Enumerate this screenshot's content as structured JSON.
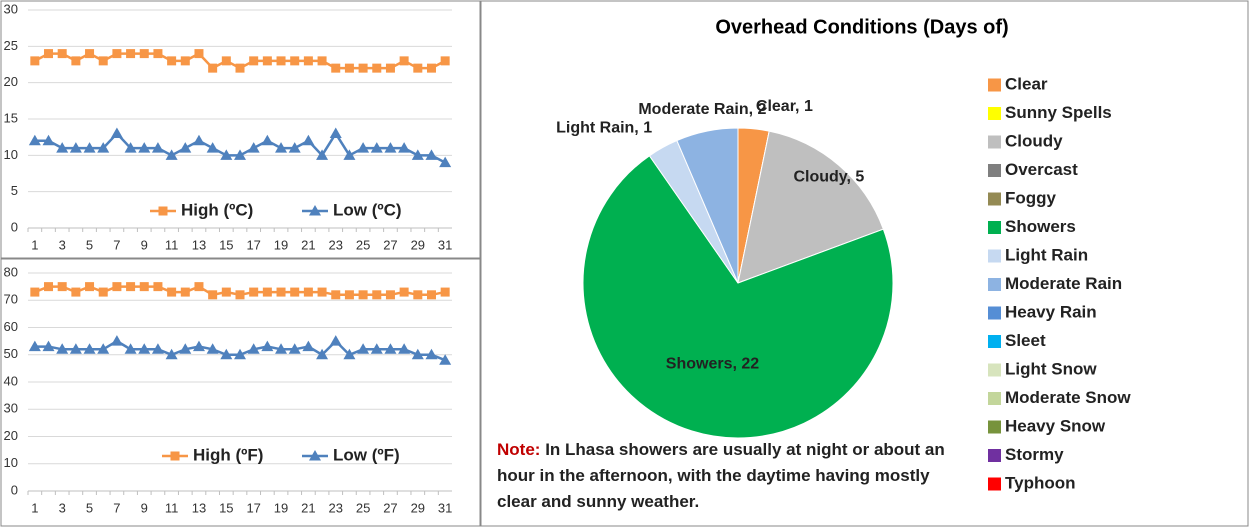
{
  "chart_data": [
    {
      "type": "line",
      "categories": [
        "1",
        null,
        "3",
        null,
        "5",
        null,
        "7",
        null,
        "9",
        null,
        "11",
        null,
        "13",
        null,
        "15",
        null,
        "17",
        null,
        "19",
        null,
        "21",
        null,
        "23",
        null,
        "25",
        null,
        "27",
        null,
        "29",
        null,
        "31"
      ],
      "ylim": [
        0,
        30
      ],
      "yticks": [
        0,
        5,
        10,
        15,
        20,
        25,
        30
      ],
      "grid": true,
      "series": [
        {
          "name": "High (ºC)",
          "color": "#f79646",
          "marker": "square",
          "values": [
            23,
            24,
            24,
            23,
            24,
            23,
            24,
            24,
            24,
            24,
            23,
            23,
            24,
            22,
            23,
            22,
            23,
            23,
            23,
            23,
            23,
            23,
            22,
            22,
            22,
            22,
            22,
            23,
            22,
            22,
            23
          ]
        },
        {
          "name": "Low (ºC)",
          "color": "#4f81bd",
          "marker": "triangle",
          "values": [
            12,
            12,
            11,
            11,
            11,
            11,
            13,
            11,
            11,
            11,
            10,
            11,
            12,
            11,
            10,
            10,
            11,
            12,
            11,
            11,
            12,
            10,
            13,
            10,
            11,
            11,
            11,
            11,
            10,
            10,
            9
          ]
        }
      ]
    },
    {
      "type": "line",
      "categories": [
        "1",
        null,
        "3",
        null,
        "5",
        null,
        "7",
        null,
        "9",
        null,
        "11",
        null,
        "13",
        null,
        "15",
        null,
        "17",
        null,
        "19",
        null,
        "21",
        null,
        "23",
        null,
        "25",
        null,
        "27",
        null,
        "29",
        null,
        "31"
      ],
      "ylim": [
        0,
        80
      ],
      "yticks": [
        0,
        10,
        20,
        30,
        40,
        50,
        60,
        70,
        80
      ],
      "grid": true,
      "series": [
        {
          "name": "High (ºF)",
          "color": "#f79646",
          "marker": "square",
          "values": [
            73,
            75,
            75,
            73,
            75,
            73,
            75,
            75,
            75,
            75,
            73,
            73,
            75,
            72,
            73,
            72,
            73,
            73,
            73,
            73,
            73,
            73,
            72,
            72,
            72,
            72,
            72,
            73,
            72,
            72,
            73
          ]
        },
        {
          "name": "Low (ºF)",
          "color": "#4f81bd",
          "marker": "triangle",
          "values": [
            53,
            53,
            52,
            52,
            52,
            52,
            55,
            52,
            52,
            52,
            50,
            52,
            53,
            52,
            50,
            50,
            52,
            53,
            52,
            52,
            53,
            50,
            55,
            50,
            52,
            52,
            52,
            52,
            50,
            50,
            48
          ]
        }
      ]
    },
    {
      "type": "pie",
      "title": "Overhead Conditions (Days of)",
      "categories": [
        "Clear",
        "Sunny Spells",
        "Cloudy",
        "Overcast",
        "Foggy",
        "Showers",
        "Light Rain",
        "Moderate Rain",
        "Heavy Rain",
        "Sleet",
        "Light Snow",
        "Moderate Snow",
        "Heavy Snow",
        "Stormy",
        "Typhoon"
      ],
      "values": [
        1,
        0,
        5,
        0,
        0,
        22,
        1,
        2,
        0,
        0,
        0,
        0,
        0,
        0,
        0
      ],
      "value_labels": [
        "Clear, 1",
        null,
        "Cloudy, 5",
        null,
        null,
        "Showers, 22",
        "Light Rain, 1",
        "Moderate Rain, 2",
        null,
        null,
        null,
        null,
        null,
        null,
        null
      ],
      "colors": [
        "#f79646",
        "#ffff00",
        "#bfbfbf",
        "#7f7f7f",
        "#948a54",
        "#00b050",
        "#c6d9f1",
        "#8db3e2",
        "#558ed5",
        "#00b0f0",
        "#d7e4bd",
        "#c3d69b",
        "#77933c",
        "#7030a0",
        "#ff0000"
      ],
      "legend": "right",
      "note_label": "Note:",
      "note": "In Lhasa showers are usually at night or about an hour in the afternoon, with the daytime having mostly clear and sunny weather."
    }
  ]
}
